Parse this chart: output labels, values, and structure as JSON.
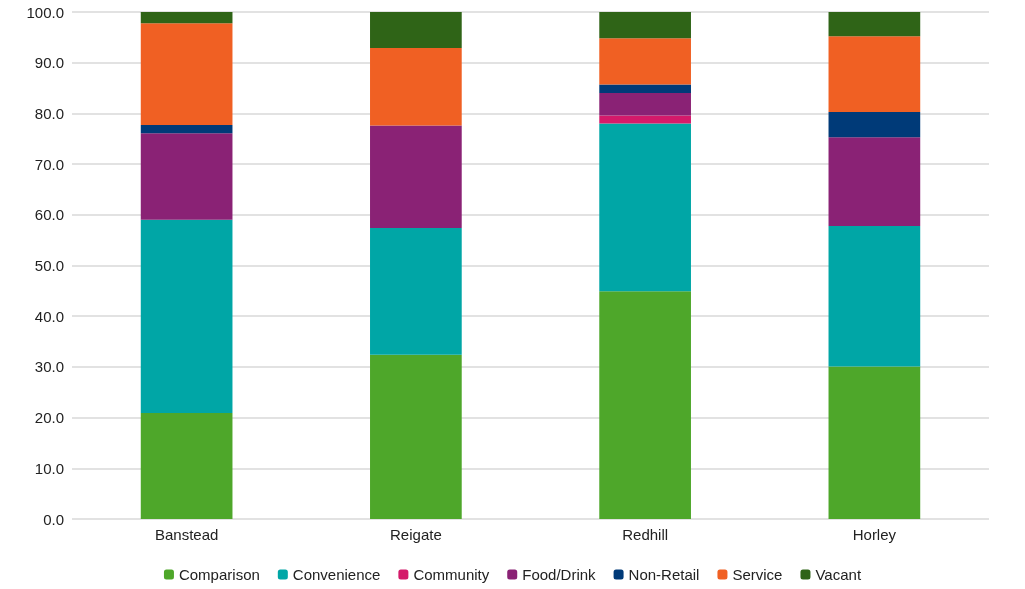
{
  "chart_data": {
    "type": "bar",
    "stacked": true,
    "categories": [
      "Banstead",
      "Reigate",
      "Redhill",
      "Horley"
    ],
    "series": [
      {
        "name": "Comparison",
        "color": "#4ea72a",
        "values": [
          20.9,
          32.4,
          44.9,
          30.1
        ]
      },
      {
        "name": "Convenience",
        "color": "#00a6a6",
        "values": [
          38.1,
          25.0,
          33.1,
          27.7
        ]
      },
      {
        "name": "Community",
        "color": "#d41a6a",
        "values": [
          0,
          0,
          1.6,
          0
        ]
      },
      {
        "name": "Food/Drink",
        "color": "#8a2275",
        "values": [
          17.1,
          20.2,
          4.4,
          17.5
        ]
      },
      {
        "name": "Non-Retail",
        "color": "#003a78",
        "values": [
          1.6,
          0,
          1.7,
          5.0
        ]
      },
      {
        "name": "Service",
        "color": "#f06023",
        "values": [
          20.1,
          15.3,
          9.1,
          14.9
        ]
      },
      {
        "name": "Vacant",
        "color": "#2f6417",
        "values": [
          2.2,
          7.1,
          5.2,
          4.8
        ]
      }
    ],
    "ylim": [
      0,
      100
    ],
    "yticks": [
      {
        "value": 0,
        "label": "0.0"
      },
      {
        "value": 10,
        "label": "10.0"
      },
      {
        "value": 20,
        "label": "20.0"
      },
      {
        "value": 30,
        "label": "30.0"
      },
      {
        "value": 40,
        "label": "40.0"
      },
      {
        "value": 50,
        "label": "50.0"
      },
      {
        "value": 60,
        "label": "60.0"
      },
      {
        "value": 70,
        "label": "70.0"
      },
      {
        "value": 80,
        "label": "80.0"
      },
      {
        "value": 90,
        "label": "90.0"
      },
      {
        "value": 100,
        "label": "100.0"
      }
    ],
    "grid": "y",
    "legend": "bottom"
  }
}
